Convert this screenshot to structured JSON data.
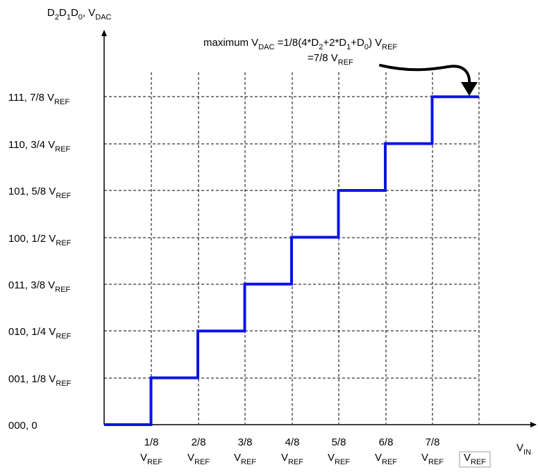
{
  "y_axis": {
    "label": {
      "main": "D",
      "d2_sub": "2",
      "d1": "D",
      "d1_sub": "1",
      "d0": "D",
      "d0_sub": "0",
      "sep": ", V",
      "vdac_sub": "DAC"
    },
    "ticks": [
      {
        "text": "000, 0",
        "sub": ""
      },
      {
        "text": "001, 1/8 V",
        "sub": "REF"
      },
      {
        "text": "010, 1/4 V",
        "sub": "REF"
      },
      {
        "text": "011, 3/8 V",
        "sub": "REF"
      },
      {
        "text": "100, 1/2 V",
        "sub": "REF"
      },
      {
        "text": "101, 5/8 V",
        "sub": "REF"
      },
      {
        "text": "110, 3/4 V",
        "sub": "REF"
      },
      {
        "text": "111, 7/8 V",
        "sub": "REF"
      }
    ]
  },
  "x_axis": {
    "label": {
      "main": "V",
      "sub": "IN"
    },
    "ticks": [
      {
        "frac": "1/8",
        "v": "V",
        "sub": "REF"
      },
      {
        "frac": "2/8",
        "v": "V",
        "sub": "REF"
      },
      {
        "frac": "3/8",
        "v": "V",
        "sub": "REF"
      },
      {
        "frac": "4/8",
        "v": "V",
        "sub": "REF"
      },
      {
        "frac": "5/8",
        "v": "V",
        "sub": "REF"
      },
      {
        "frac": "6/8",
        "v": "V",
        "sub": "REF"
      },
      {
        "frac": "7/8",
        "v": "V",
        "sub": "REF"
      },
      {
        "frac": "",
        "v": "V",
        "sub": "REF"
      }
    ]
  },
  "annotation": {
    "line1": {
      "a": "maximum V",
      "a_sub": "DAC",
      "b": " =1/8(4*D",
      "b_sub": "2",
      "c": "+2*D",
      "c_sub": "1",
      "d": "+D",
      "d_sub": "0",
      "e": ") V",
      "e_sub": "REF"
    },
    "line2": {
      "a": "=7/8 V",
      "a_sub": "REF"
    }
  },
  "staircase": {
    "x": [
      0,
      1,
      2,
      3,
      4,
      5,
      6,
      7,
      8
    ],
    "level": [
      0,
      1,
      2,
      3,
      4,
      5,
      6,
      7,
      7
    ],
    "color": "#0a14e6"
  }
}
